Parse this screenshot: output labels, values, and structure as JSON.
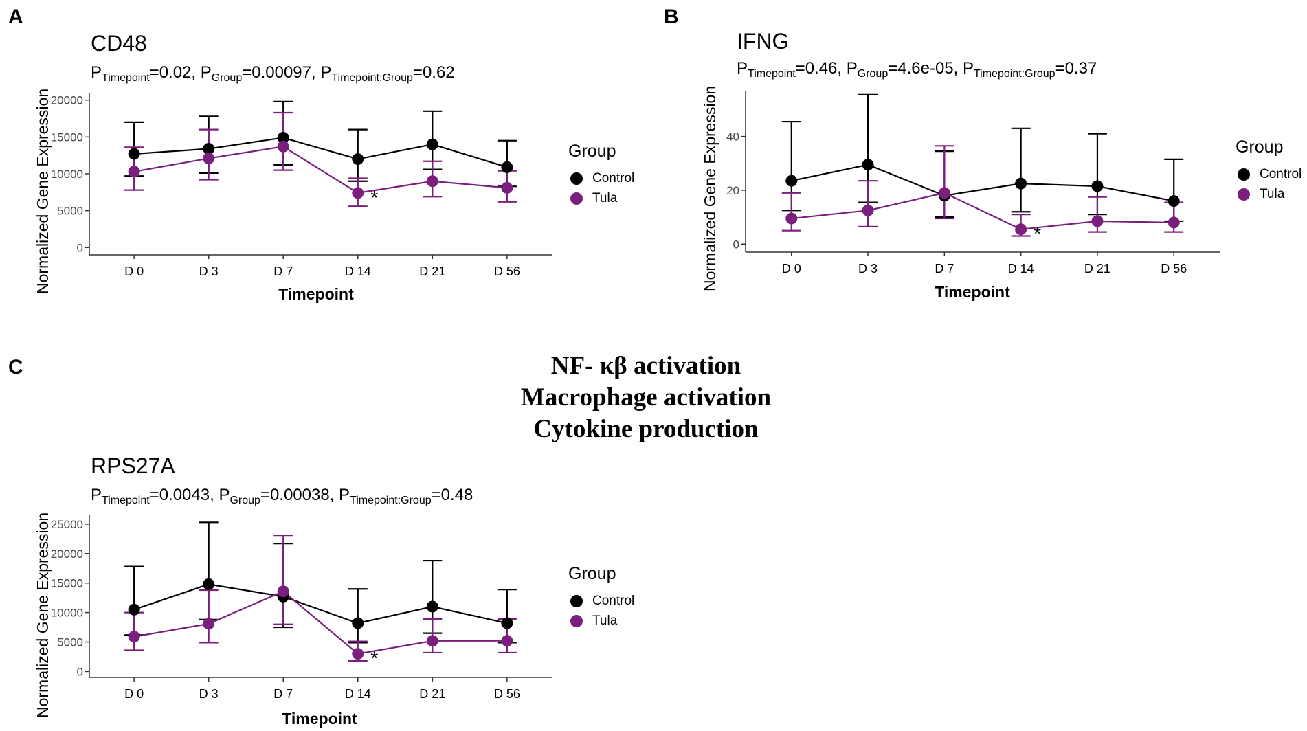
{
  "panels": {
    "A": {
      "letter": "A"
    },
    "B": {
      "letter": "B"
    },
    "C": {
      "letter": "C"
    }
  },
  "center_text": [
    "NF- κβ activation",
    "Macrophage activation",
    "Cytokine production"
  ],
  "legend": {
    "title": "Group",
    "control_label": "Control",
    "tula_label": "Tula"
  },
  "colors": {
    "control": "#000000",
    "tula": "#7b1f7f",
    "axis": "#333333"
  },
  "chart_data": [
    {
      "id": "cd48",
      "type": "line",
      "title": "CD48",
      "pvalues": [
        {
          "label": "P",
          "sub": "Timepoint",
          "value": "=0.02, "
        },
        {
          "label": "P",
          "sub": "Group",
          "value": "=0.00097, "
        },
        {
          "label": "P",
          "sub": "Timepoint:Group",
          "value": "=0.62"
        }
      ],
      "xlabel": "Timepoint",
      "ylabel": "Normalized Gene Expression",
      "categories": [
        "D 0",
        "D 3",
        "D 7",
        "D 14",
        "D 21",
        "D 56"
      ],
      "yticks": [
        0,
        5000,
        10000,
        15000,
        20000
      ],
      "ylim": [
        -1000,
        21000
      ],
      "series": [
        {
          "name": "Control",
          "values": [
            12700,
            13400,
            14900,
            12000,
            14000,
            10900
          ],
          "err_lo": [
            9700,
            10100,
            11200,
            9000,
            10600,
            8300
          ],
          "err_hi": [
            17000,
            17800,
            19800,
            16000,
            18500,
            14500
          ]
        },
        {
          "name": "Tula",
          "values": [
            10300,
            12100,
            13700,
            7400,
            9000,
            8100
          ],
          "err_lo": [
            7800,
            9200,
            10500,
            5600,
            6900,
            6200
          ],
          "err_hi": [
            13600,
            16000,
            18300,
            9400,
            11700,
            10400
          ]
        }
      ],
      "annotations": [
        {
          "text": "*",
          "category": "D 14"
        }
      ]
    },
    {
      "id": "ifng",
      "type": "line",
      "title": "IFNG",
      "pvalues": [
        {
          "label": "P",
          "sub": "Timepoint",
          "value": "=0.46, "
        },
        {
          "label": "P",
          "sub": "Group",
          "value": "=4.6e-05, "
        },
        {
          "label": "P",
          "sub": "Timepoint:Group",
          "value": "=0.37"
        }
      ],
      "xlabel": "Timepoint",
      "ylabel": "Normalized Gene Expression",
      "categories": [
        "D 0",
        "D 3",
        "D 7",
        "D 14",
        "D 21",
        "D 56"
      ],
      "yticks": [
        0,
        20,
        40
      ],
      "ylim": [
        -3,
        57
      ],
      "series": [
        {
          "name": "Control",
          "values": [
            23.5,
            29.5,
            18,
            22.5,
            21.5,
            16
          ],
          "err_lo": [
            12.5,
            15.5,
            10,
            12,
            11,
            8.5
          ],
          "err_hi": [
            45.5,
            55.5,
            34.5,
            43,
            41,
            31.5
          ]
        },
        {
          "name": "Tula",
          "values": [
            9.5,
            12.5,
            19,
            5.5,
            8.5,
            8
          ],
          "err_lo": [
            5,
            6.5,
            9.5,
            3,
            4.5,
            4.5
          ],
          "err_hi": [
            19,
            23.5,
            36.5,
            11,
            17.5,
            15.5
          ]
        }
      ],
      "annotations": [
        {
          "text": "*",
          "category": "D 14"
        }
      ]
    },
    {
      "id": "rps27a",
      "type": "line",
      "title": "RPS27A",
      "pvalues": [
        {
          "label": "P",
          "sub": "Timepoint",
          "value": "=0.0043, "
        },
        {
          "label": "P",
          "sub": "Group",
          "value": "=0.00038, "
        },
        {
          "label": "P",
          "sub": "Timepoint:Group",
          "value": "=0.48"
        }
      ],
      "xlabel": "Timepoint",
      "ylabel": "Normalized Gene Expression",
      "categories": [
        "D 0",
        "D 3",
        "D 7",
        "D 14",
        "D 21",
        "D 56"
      ],
      "yticks": [
        0,
        5000,
        10000,
        15000,
        20000,
        25000
      ],
      "ylim": [
        -1000,
        26500
      ],
      "series": [
        {
          "name": "Control",
          "values": [
            10500,
            14800,
            12700,
            8200,
            11000,
            8200
          ],
          "err_lo": [
            6200,
            8800,
            7500,
            4900,
            6500,
            4900
          ],
          "err_hi": [
            17800,
            25300,
            21700,
            14000,
            18800,
            13900
          ]
        },
        {
          "name": "Tula",
          "values": [
            5900,
            8100,
            13600,
            3000,
            5200,
            5200
          ],
          "err_lo": [
            3600,
            4900,
            8000,
            1800,
            3200,
            3200
          ],
          "err_hi": [
            10000,
            13800,
            23100,
            5100,
            8900,
            8900
          ]
        }
      ],
      "annotations": [
        {
          "text": "*",
          "category": "D 14"
        }
      ]
    }
  ]
}
